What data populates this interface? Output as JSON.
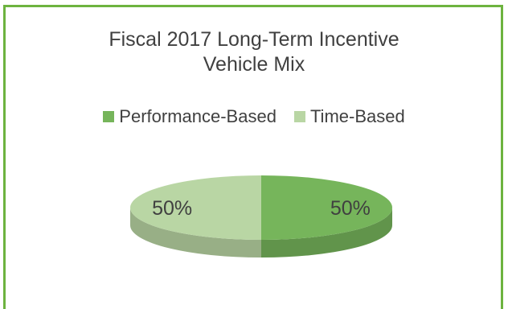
{
  "chart_data": {
    "type": "pie",
    "title_lines": [
      "Fiscal 2017 Long-Term Incentive",
      "Vehicle Mix"
    ],
    "legend_position": "top",
    "slices": [
      {
        "name": "Performance-Based",
        "value": 50,
        "label": "50%",
        "color": "#76b55b"
      },
      {
        "name": "Time-Based",
        "value": 50,
        "label": "50%",
        "color": "#b9d6a4"
      }
    ],
    "style": "3d"
  }
}
